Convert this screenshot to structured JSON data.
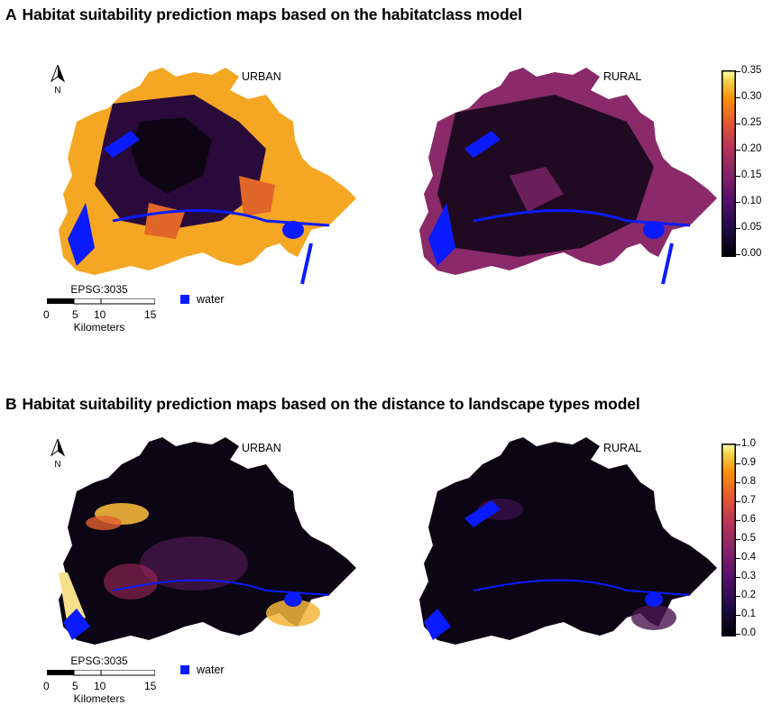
{
  "panels": [
    {
      "letter": "A",
      "title": "Habitat suitability prediction maps based on the habitatclass model",
      "map_left_label": "URBAN",
      "map_right_label": "RURAL",
      "north_label": "N",
      "scale": {
        "crs": "EPSG:3035",
        "ticks": [
          "0",
          "5",
          "10",
          "15"
        ],
        "unit": "Kilometers"
      },
      "legend_water": "water",
      "colorbar_ticks": [
        "0.35",
        "0.30",
        "0.25",
        "0.20",
        "0.15",
        "0.10",
        "0.05",
        "0.00"
      ]
    },
    {
      "letter": "B",
      "title": "Habitat suitability prediction maps based on the distance to landscape types model",
      "map_left_label": "URBAN",
      "map_right_label": "RURAL",
      "north_label": "N",
      "scale": {
        "crs": "EPSG:3035",
        "ticks": [
          "0",
          "5",
          "10",
          "15"
        ],
        "unit": "Kilometers"
      },
      "legend_water": "water",
      "colorbar_ticks": [
        "1.0",
        "0.9",
        "0.8",
        "0.7",
        "0.6",
        "0.5",
        "0.4",
        "0.3",
        "0.2",
        "0.1",
        "0.0"
      ]
    }
  ],
  "colors": {
    "water": "#0a1cff",
    "inferno_low": "#000004",
    "inferno_mid": "#b5367a",
    "inferno_high": "#fcffa4",
    "rural_base": "#8a2a6a"
  }
}
